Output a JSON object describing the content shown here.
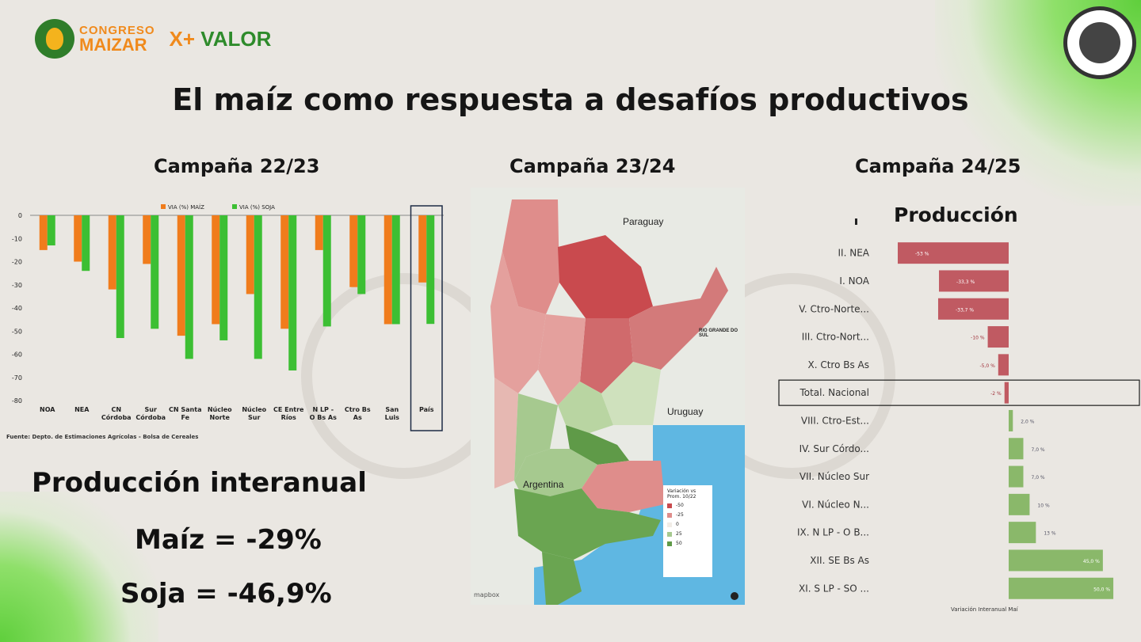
{
  "header": {
    "logo_line1": "CONGRESO",
    "logo_line2": "MAIZAR",
    "logo_valor_prefix": "X+",
    "logo_valor": "VALOR",
    "title": "El maíz como respuesta a desafíos productivos"
  },
  "campaigns": {
    "c1": "Campaña 22/23",
    "c2": "Campaña 23/24",
    "c3": "Campaña 24/25"
  },
  "colors": {
    "maiz": "#f07c1c",
    "soja": "#3cbf33",
    "negative": "#c05a62",
    "positive": "#8ab86a"
  },
  "chart_data": [
    {
      "type": "bar",
      "title": "",
      "legend": [
        "VIA (%) MAÍZ",
        "VIA (%) SOJA"
      ],
      "legend_placement": "top",
      "categories": [
        "NOA",
        "NEA",
        "CN Córdoba",
        "Sur Córdoba",
        "CN Santa Fe",
        "Núcleo Norte",
        "Núcleo Sur",
        "CE Entre Ríos",
        "N LP - O Bs As",
        "Ctro Bs As",
        "San Luis",
        "País"
      ],
      "series": [
        {
          "name": "VIA (%) MAÍZ",
          "values": [
            -15,
            -20,
            -32,
            -21,
            -52,
            -47,
            -34,
            -49,
            -15,
            -31,
            -47,
            -29
          ]
        },
        {
          "name": "VIA (%) SOJA",
          "values": [
            -13,
            -24,
            -53,
            -49,
            -62,
            -54,
            -62,
            -67,
            -48,
            -34,
            -47,
            -46.9
          ]
        }
      ],
      "ylim": [
        -80,
        0
      ],
      "yticks": [
        0,
        -10,
        -20,
        -30,
        -40,
        -50,
        -60,
        -70,
        -80
      ],
      "highlight_category": "País",
      "source": "Fuente: Depto. de Estimaciones Agrícolas - Bolsa de Cereales"
    },
    {
      "type": "bar",
      "orientation": "horizontal",
      "title": "Producción",
      "xlabel": "Variación Interanual Maí",
      "categories": [
        "II. NEA",
        "I. NOA",
        "V. Ctro-Norte...",
        "III. Ctro-Nort...",
        "X. Ctro Bs As",
        "Total. Nacional",
        "VIII. Ctro-Est...",
        "IV. Sur Córdo...",
        "VII. Núcleo Sur",
        "VI. Núcleo N...",
        "IX. N LP - O B...",
        "XII. SE Bs As",
        "XI. S LP - SO ..."
      ],
      "values": [
        -53,
        -33.3,
        -33.7,
        -10,
        -5,
        -2,
        2,
        7,
        7,
        10,
        13,
        45,
        50
      ],
      "value_labels": [
        "-53 %",
        "-33,3 %",
        "-33,7 %",
        "-10 %",
        "-5,0 %",
        "-2 %",
        "2,0 %",
        "7,0 %",
        "7,0 %",
        "10 %",
        "13 %",
        "45,0 %",
        "50,0 %"
      ],
      "highlight_category": "Total. Nacional"
    }
  ],
  "production": {
    "heading": "Producción interanual",
    "maiz": "Maíz = -29%",
    "soja": "Soja = -46,9%"
  },
  "map": {
    "labels": {
      "paraguay": "Paraguay",
      "uruguay": "Uruguay",
      "argentina": "Argentina",
      "rio_grande": "RIO GRANDE DO SUL"
    },
    "legend_title": "Variación vs Prom. 10/22",
    "legend_items": [
      {
        "label": "-50",
        "color": "#c94a4e"
      },
      {
        "label": "-25",
        "color": "#df8d8b"
      },
      {
        "label": "0",
        "color": "#f1ece6"
      },
      {
        "label": "25",
        "color": "#a6c98f"
      },
      {
        "label": "50",
        "color": "#5f9a48"
      }
    ],
    "attribution": "mapbox"
  }
}
